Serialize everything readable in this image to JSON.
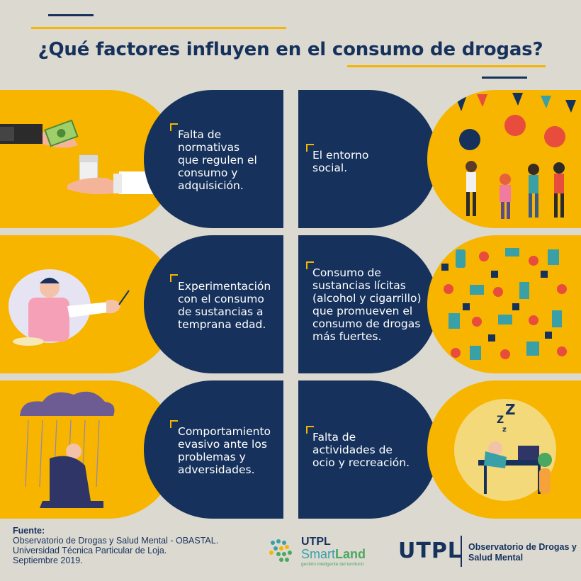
{
  "title": "¿Qué factores influyen en el consumo de drogas?",
  "colors": {
    "navy": "#16325c",
    "yellow": "#f7b500",
    "background": "#dcd9d1"
  },
  "factors": [
    {
      "text": "Falta de\nnormativas\nque regulen el\nconsumo y\nadquisición.",
      "illustration": "money-and-pills-exchange-illustration"
    },
    {
      "text": "El entorno\nsocial.",
      "illustration": "party-people-illustration"
    },
    {
      "text": "Experimentación\ncon el consumo\nde sustancias a\ntemprana edad.",
      "illustration": "girl-offered-substance-illustration"
    },
    {
      "text": "Consumo de\nsustancias lícitas\n(alcohol y cigarrillo)\nque promueven el\nconsumo de drogas\nmás fuertes.",
      "illustration": "substances-pattern-illustration"
    },
    {
      "text": "Comportamiento\nevasivo ante los\nproblemas y\nadversidades.",
      "illustration": "sad-man-under-rain-cloud-illustration"
    },
    {
      "text": "Falta de\nactividades de\nocio y recreación.",
      "illustration": "sleeping-at-desk-illustration"
    }
  ],
  "footer": {
    "source_label": "Fuente:",
    "source_lines": [
      "Observatorio de Drogas y Salud Mental - OBASTAL.",
      "Universidad Técnica Particular de Loja.",
      "Septiembre 2019."
    ],
    "smartland": {
      "line1": "UTPL",
      "line2a": "Smart",
      "line2b": "Land",
      "tagline": "gestión inteligente del territorio"
    },
    "utpl": {
      "name": "UTPL",
      "observatory_line1": "Observatorio de Drogas y",
      "observatory_line2": "Salud Mental"
    }
  }
}
